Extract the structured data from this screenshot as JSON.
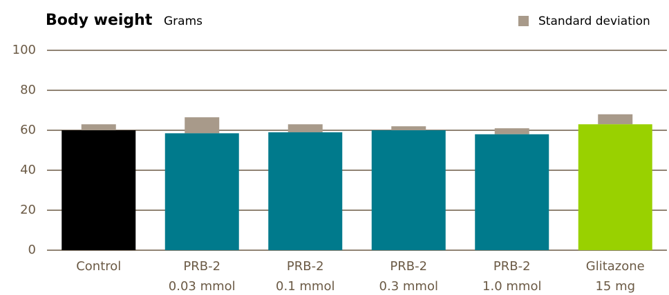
{
  "chart_data": {
    "type": "bar",
    "title": "Body weight",
    "subtitle": "Grams",
    "categories": [
      [
        "Control"
      ],
      [
        "PRB-2",
        "0.03 mmol"
      ],
      [
        "PRB-2",
        "0.1 mmol"
      ],
      [
        "PRB-2",
        "0.3 mmol"
      ],
      [
        "PRB-2",
        "1.0 mmol"
      ],
      [
        "Glitazone",
        "15 mg"
      ]
    ],
    "values": [
      60,
      58.5,
      59,
      60,
      58,
      63
    ],
    "errors": [
      3,
      8,
      4,
      2,
      3,
      5
    ],
    "error_name": "Standard deviation",
    "colors": [
      "#000000",
      "#007a8c",
      "#007a8c",
      "#007a8c",
      "#007a8c",
      "#99d100"
    ],
    "error_color": "#a89a8a",
    "ylim": [
      0,
      100
    ],
    "yticks": [
      0,
      20,
      40,
      60,
      80,
      100
    ],
    "grid": true
  }
}
